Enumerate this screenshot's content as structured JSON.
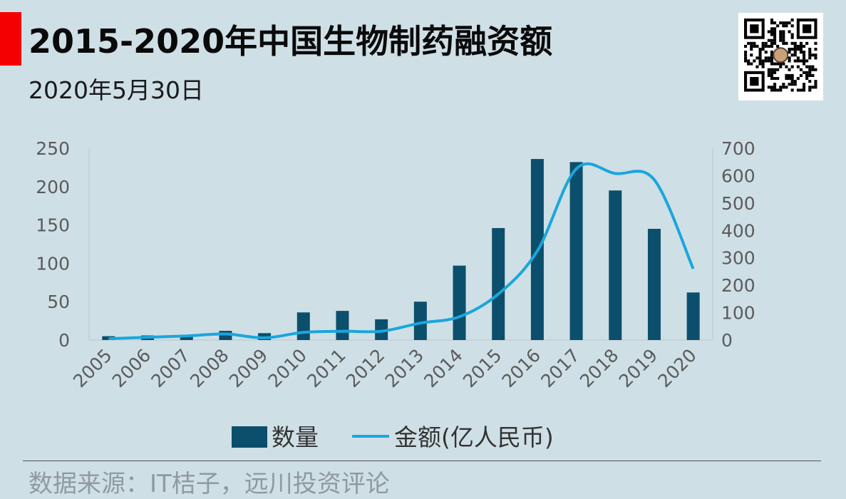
{
  "title": "2015-2020年中国生物制药融资额",
  "subtitle": "2020年5月30日",
  "source": "数据来源：IT桔子，远川投资评论",
  "qr_code": {
    "icon": "qr-code-icon"
  },
  "chart_data": {
    "type": "bar+line",
    "categories": [
      "2005",
      "2006",
      "2007",
      "2008",
      "2009",
      "2010",
      "2011",
      "2012",
      "2013",
      "2014",
      "2015",
      "2016",
      "2017",
      "2018",
      "2019",
      "2020"
    ],
    "series": [
      {
        "name": "数量",
        "type": "bar",
        "axis": "left",
        "color": "#0b4f6c",
        "values": [
          5,
          6,
          6,
          12,
          9,
          36,
          38,
          27,
          50,
          97,
          146,
          236,
          232,
          195,
          145,
          62
        ]
      },
      {
        "name": "金额(亿人民币)",
        "type": "line",
        "axis": "right",
        "color": "#1aa6dc",
        "values": [
          5,
          10,
          15,
          22,
          8,
          28,
          32,
          32,
          62,
          85,
          168,
          325,
          625,
          608,
          585,
          260
        ]
      }
    ],
    "y_left": {
      "min": 0,
      "max": 250,
      "ticks": [
        0,
        50,
        100,
        150,
        200,
        250
      ]
    },
    "y_right": {
      "min": 0,
      "max": 700,
      "ticks": [
        0,
        100,
        200,
        300,
        400,
        500,
        600,
        700
      ]
    },
    "legend": {
      "position": "bottom"
    },
    "grid": false,
    "colors": {
      "axis_text": "#5b5b5b",
      "axis_line": "#b9c6cc"
    }
  }
}
